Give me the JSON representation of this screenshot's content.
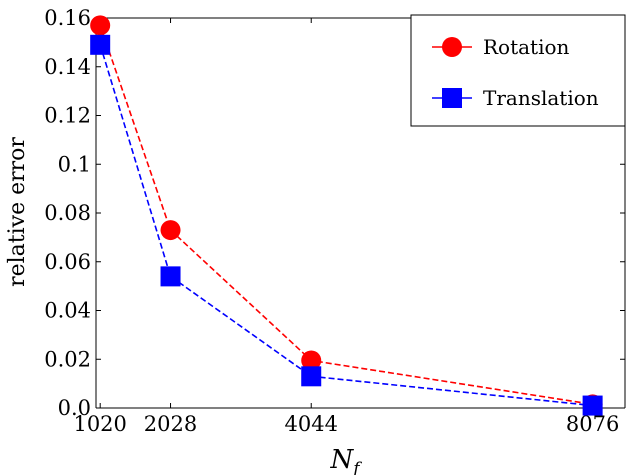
{
  "chart_data": {
    "type": "line",
    "xlabel": "N",
    "xlabel_sub": "f",
    "ylabel": "relative error",
    "x": [
      1020,
      2028,
      4044,
      8076
    ],
    "x_tick_labels": [
      "1020",
      "2028",
      "4044",
      "8076"
    ],
    "xlim": [
      960,
      8540
    ],
    "ylim": [
      0,
      0.16
    ],
    "y_ticks": [
      0,
      0.02,
      0.04,
      0.06,
      0.08,
      0.1,
      0.12,
      0.14,
      0.16
    ],
    "y_tick_labels": [
      "0.0",
      "0.02",
      "0.04",
      "0.06",
      "0.08",
      "0.1",
      "0.12",
      "0.14",
      "0.16"
    ],
    "legend_position": "top-right",
    "grid": false,
    "series": [
      {
        "name": "Rotation",
        "values": [
          0.157,
          0.073,
          0.0195,
          0.0015
        ],
        "color": "#ff0000",
        "marker": "circle",
        "line_style": "dashed"
      },
      {
        "name": "Translation",
        "values": [
          0.149,
          0.054,
          0.013,
          0.001
        ],
        "color": "#0000ff",
        "marker": "square",
        "line_style": "dashed"
      }
    ]
  }
}
